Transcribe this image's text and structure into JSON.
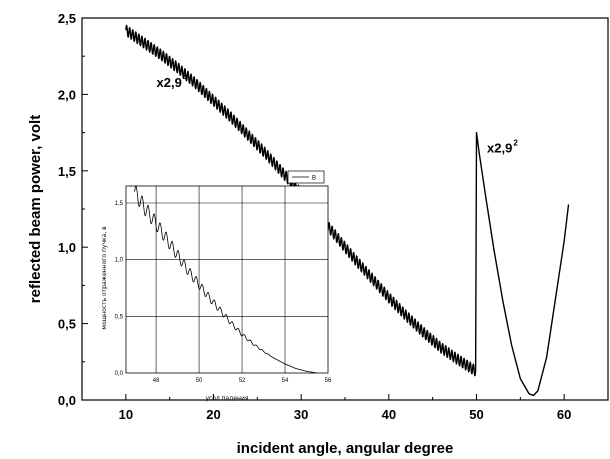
{
  "chart_data": [
    {
      "type": "line",
      "xlabel": "incident angle, angular degree",
      "ylabel": "reflected beam power, volt",
      "xlim": [
        5,
        65
      ],
      "ylim": [
        0,
        2.5
      ],
      "xticks": [
        10,
        20,
        30,
        40,
        50,
        60
      ],
      "xtick_labels": [
        "10",
        "20",
        "30",
        "40",
        "50",
        "60"
      ],
      "yticks": [
        0,
        0.5,
        1.0,
        1.5,
        2.0,
        2.5
      ],
      "ytick_labels": [
        "0,0",
        "0,5",
        "1,0",
        "1,5",
        "2,0",
        "2,5"
      ],
      "grid": false,
      "annotations": [
        {
          "text": "x2,9",
          "sup": "4",
          "x": 13.5,
          "y": 2.05
        },
        {
          "text": "x2,9",
          "sup": "2",
          "x": 51.2,
          "y": 1.62
        }
      ],
      "series": [
        {
          "x": [
            10,
            12,
            14,
            16,
            18,
            20,
            22,
            24,
            26,
            28,
            30,
            32,
            34,
            36,
            38,
            40,
            42,
            44,
            46,
            48,
            49.9,
            50.0,
            50.3,
            51,
            52,
            53,
            54,
            55,
            56,
            56.5,
            57,
            58,
            59,
            60,
            60.5
          ],
          "y": [
            2.42,
            2.34,
            2.26,
            2.17,
            2.07,
            1.96,
            1.85,
            1.73,
            1.61,
            1.48,
            1.35,
            1.21,
            1.07,
            0.93,
            0.8,
            0.67,
            0.55,
            0.44,
            0.34,
            0.26,
            0.19,
            1.75,
            1.62,
            1.35,
            0.98,
            0.65,
            0.36,
            0.14,
            0.04,
            0.03,
            0.06,
            0.28,
            0.66,
            1.04,
            1.28
          ],
          "oscillation": {
            "amplitude": 0.035,
            "period": 0.35,
            "until_x": 49.9
          }
        }
      ]
    },
    {
      "type": "line",
      "xlabel": "угол падения",
      "ylabel": "мощность отраженного пучка, в",
      "xlim": [
        46.6,
        56
      ],
      "ylim": [
        0,
        1.65
      ],
      "xticks": [
        48,
        50,
        52,
        54,
        56
      ],
      "xtick_labels": [
        "48",
        "50",
        "52",
        "54",
        "56"
      ],
      "yticks": [
        0,
        0.5,
        1.0,
        1.5
      ],
      "ytick_labels": [
        "0,0",
        "0,5",
        "1,0",
        "1,5"
      ],
      "grid": true,
      "legend": {
        "position": "top-right",
        "entries": [
          "B"
        ]
      },
      "series": [
        {
          "name": "B",
          "x": [
            47.0,
            47.5,
            48.0,
            48.5,
            49.0,
            49.5,
            50.0,
            50.5,
            51.0,
            51.5,
            52.0,
            52.5,
            53.0,
            53.5,
            54.0,
            54.5,
            55.0,
            55.5
          ],
          "y": [
            1.6,
            1.45,
            1.32,
            1.18,
            1.04,
            0.9,
            0.78,
            0.66,
            0.55,
            0.44,
            0.34,
            0.26,
            0.19,
            0.13,
            0.08,
            0.04,
            0.015,
            0.0
          ],
          "oscillation": {
            "amplitude": 0.07,
            "period": 0.28,
            "fade_until_x": 53.5
          }
        }
      ]
    }
  ]
}
